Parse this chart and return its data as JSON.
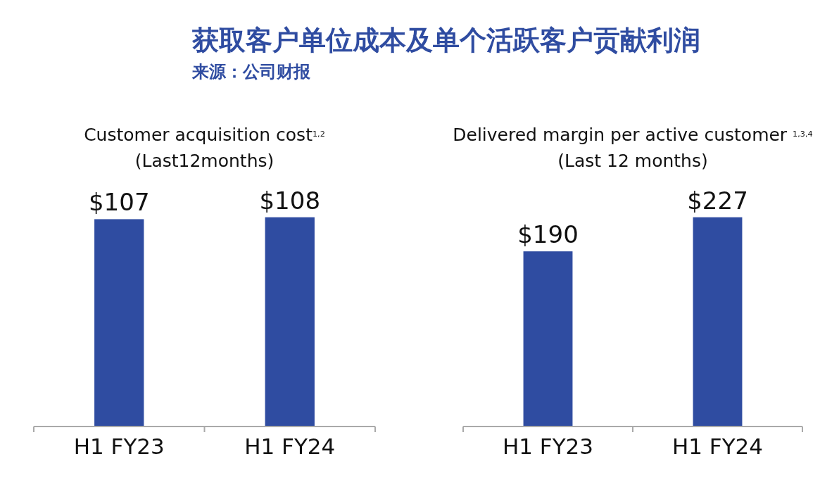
{
  "chart_data": [
    {
      "type": "other",
      "title": "获取客户单位成本及单个活跃客户贡献利润",
      "annotations": [
        "来源：公司财报"
      ]
    },
    {
      "type": "bar",
      "title": "Customer acquisition cost$^{1,2}$",
      "subtitle": "(Last12months)",
      "categories": [
        "H1 FY23",
        "H1 FY24"
      ],
      "values": [
        107,
        108
      ],
      "color": "#2f4ca1",
      "value_labels": [
        "$107",
        "$108"
      ]
    },
    {
      "type": "bar",
      "title": "Delivered margin per active customer $^{1,3,4}$",
      "subtitle": "(Last 12 months)",
      "categories": [
        "H1 FY23",
        "H1 FY24"
      ],
      "values": [
        190,
        227
      ],
      "color": "#2f4ca1",
      "value_labels": [
        "$190",
        "$227"
      ]
    }
  ]
}
